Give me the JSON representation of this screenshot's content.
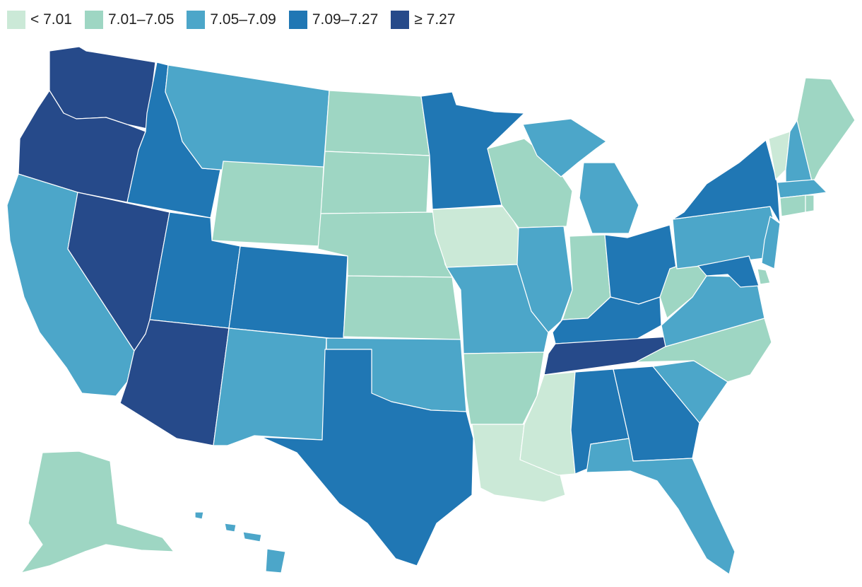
{
  "legend": [
    {
      "label": "< 7.01",
      "color": "#cbe9d7"
    },
    {
      "label": "7.01–7.05",
      "color": "#9ed6c3"
    },
    {
      "label": "7.05–7.09",
      "color": "#4ca6c9"
    },
    {
      "label": "7.09–7.27",
      "color": "#2077b4"
    },
    {
      "label": "≥ 7.27",
      "color": "#264a8a"
    }
  ],
  "states": [
    {
      "id": "WA",
      "bin": 4
    },
    {
      "id": "OR",
      "bin": 4
    },
    {
      "id": "CA",
      "bin": 2
    },
    {
      "id": "NV",
      "bin": 4
    },
    {
      "id": "ID",
      "bin": 3
    },
    {
      "id": "MT",
      "bin": 2
    },
    {
      "id": "WY",
      "bin": 1
    },
    {
      "id": "UT",
      "bin": 3
    },
    {
      "id": "AZ",
      "bin": 4
    },
    {
      "id": "CO",
      "bin": 3
    },
    {
      "id": "NM",
      "bin": 2
    },
    {
      "id": "ND",
      "bin": 1
    },
    {
      "id": "SD",
      "bin": 1
    },
    {
      "id": "NE",
      "bin": 1
    },
    {
      "id": "KS",
      "bin": 1
    },
    {
      "id": "OK",
      "bin": 2
    },
    {
      "id": "TX",
      "bin": 3
    },
    {
      "id": "MN",
      "bin": 3
    },
    {
      "id": "IA",
      "bin": 0
    },
    {
      "id": "MO",
      "bin": 2
    },
    {
      "id": "AR",
      "bin": 1
    },
    {
      "id": "LA",
      "bin": 0
    },
    {
      "id": "WI",
      "bin": 1
    },
    {
      "id": "IL",
      "bin": 2
    },
    {
      "id": "MI",
      "bin": 2
    },
    {
      "id": "IN",
      "bin": 1
    },
    {
      "id": "OH",
      "bin": 3
    },
    {
      "id": "KY",
      "bin": 3
    },
    {
      "id": "TN",
      "bin": 4
    },
    {
      "id": "MS",
      "bin": 0
    },
    {
      "id": "AL",
      "bin": 3
    },
    {
      "id": "GA",
      "bin": 3
    },
    {
      "id": "FL",
      "bin": 2
    },
    {
      "id": "SC",
      "bin": 2
    },
    {
      "id": "NC",
      "bin": 1
    },
    {
      "id": "VA",
      "bin": 2
    },
    {
      "id": "WV",
      "bin": 1
    },
    {
      "id": "PA",
      "bin": 2
    },
    {
      "id": "NY",
      "bin": 3
    },
    {
      "id": "VT",
      "bin": 0
    },
    {
      "id": "NH",
      "bin": 2
    },
    {
      "id": "ME",
      "bin": 1
    },
    {
      "id": "MA",
      "bin": 2
    },
    {
      "id": "CT",
      "bin": 1
    },
    {
      "id": "RI",
      "bin": 1
    },
    {
      "id": "NJ",
      "bin": 2
    },
    {
      "id": "DE",
      "bin": 1
    },
    {
      "id": "MD",
      "bin": 3
    },
    {
      "id": "AK",
      "bin": 1
    },
    {
      "id": "HI",
      "bin": 2
    }
  ]
}
